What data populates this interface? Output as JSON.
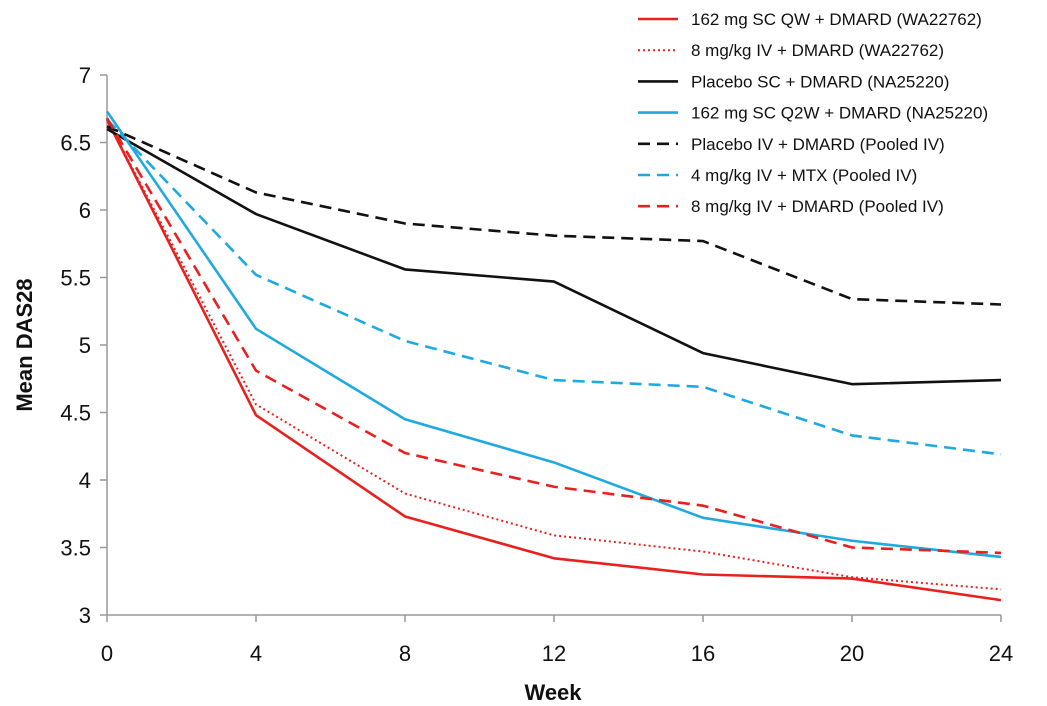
{
  "chart_data": {
    "type": "line",
    "xlabel": "Week",
    "ylabel": "Mean DAS28",
    "x": [
      0,
      4,
      8,
      12,
      16,
      20,
      24
    ],
    "xlim": [
      0,
      24
    ],
    "ylim": [
      3,
      7
    ],
    "x_ticks": [
      "0",
      "4",
      "8",
      "12",
      "16",
      "20",
      "24"
    ],
    "y_ticks": [
      "3",
      "3.5",
      "4",
      "4.5",
      "5",
      "5.5",
      "6",
      "6.5",
      "7"
    ],
    "grid": false,
    "legend_position": "top-right",
    "series": [
      {
        "name": "162 mg SC QW + DMARD (WA22762)",
        "color": "#e8201e",
        "dash": "solid",
        "values": [
          6.67,
          4.48,
          3.73,
          3.42,
          3.3,
          3.27,
          3.11
        ]
      },
      {
        "name": "8 mg/kg IV + DMARD (WA22762)",
        "color": "#e8201e",
        "dash": "dotted",
        "values": [
          6.67,
          4.56,
          3.9,
          3.59,
          3.47,
          3.28,
          3.19
        ]
      },
      {
        "name": "Placebo SC + DMARD (NA25220)",
        "color": "#111111",
        "dash": "solid",
        "values": [
          6.6,
          5.97,
          5.56,
          5.47,
          4.94,
          4.71,
          4.74
        ]
      },
      {
        "name": "162 mg SC Q2W + DMARD (NA25220)",
        "color": "#1fa9e1",
        "dash": "solid",
        "values": [
          6.73,
          5.12,
          4.45,
          4.13,
          3.72,
          3.55,
          3.43
        ]
      },
      {
        "name": "Placebo IV + DMARD (Pooled IV)",
        "color": "#111111",
        "dash": "dashed",
        "values": [
          6.62,
          6.13,
          5.9,
          5.81,
          5.77,
          5.34,
          5.3
        ]
      },
      {
        "name": "4 mg/kg IV + MTX (Pooled IV)",
        "color": "#1fa9e1",
        "dash": "dashed",
        "values": [
          6.67,
          5.52,
          5.03,
          4.74,
          4.69,
          4.33,
          4.19
        ]
      },
      {
        "name": "8 mg/kg IV + DMARD (Pooled IV)",
        "color": "#e8201e",
        "dash": "dashed",
        "values": [
          6.68,
          4.81,
          4.2,
          3.95,
          3.81,
          3.5,
          3.46
        ]
      }
    ]
  }
}
